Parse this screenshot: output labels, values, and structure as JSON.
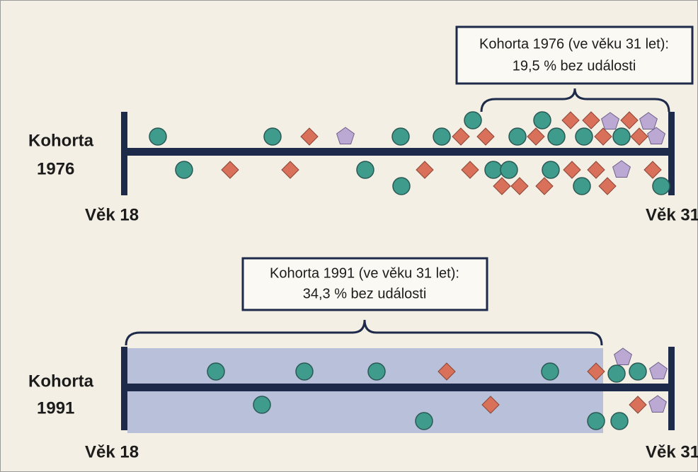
{
  "cohorts": [
    {
      "label": [
        "Kohorta",
        "1976"
      ],
      "start": "Věk 18",
      "end": "Věk 31",
      "callout": [
        "Kohorta 1976 (ve věku 31 let):",
        "19,5 % bez události"
      ]
    },
    {
      "label": [
        "Kohorta",
        "1991"
      ],
      "start": "Věk 18",
      "end": "Věk 31",
      "callout": [
        "Kohorta 1991 (ve věku 31 let):",
        "34,3 % bez události"
      ]
    }
  ]
}
